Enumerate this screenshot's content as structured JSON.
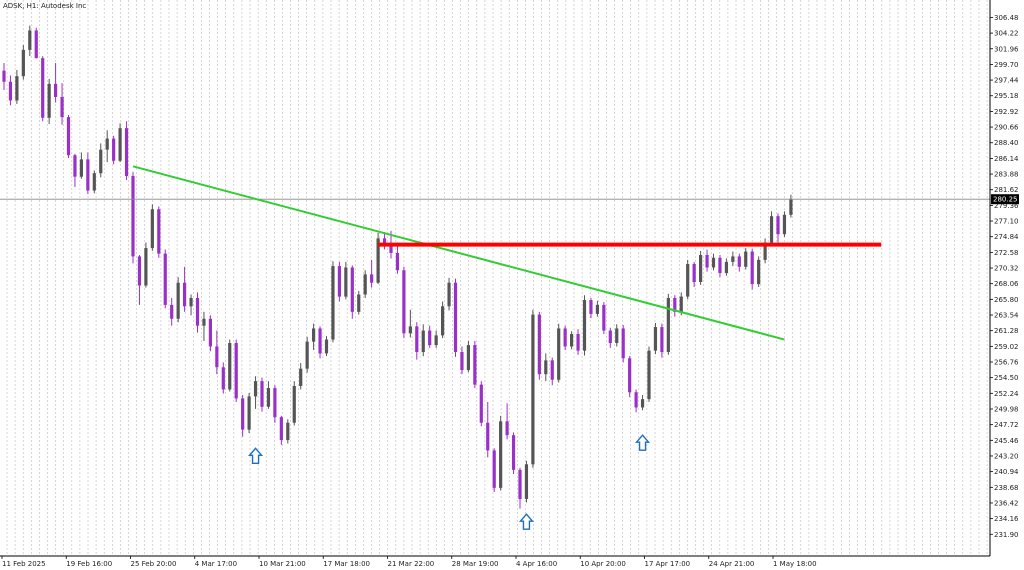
{
  "chart_data": {
    "type": "candlestick",
    "title": "ADSK, H1:  Autodesk Inc",
    "ylim": [
      230.86,
      307.48
    ],
    "y_ticks": [
      "306.48",
      "304.22",
      "301.96",
      "299.70",
      "297.44",
      "295.18",
      "292.92",
      "290.66",
      "288.40",
      "286.14",
      "283.88",
      "281.62",
      "279.36",
      "277.10",
      "274.84",
      "272.58",
      "270.32",
      "268.06",
      "265.80",
      "263.54",
      "261.28",
      "259.02",
      "256.76",
      "254.50",
      "252.24",
      "249.98",
      "247.72",
      "245.46",
      "243.20",
      "240.94",
      "238.68",
      "236.42",
      "234.16",
      "231.90"
    ],
    "x_ticks": [
      "11 Feb 2025",
      "19 Feb 16:00",
      "25 Feb 20:00",
      "4 Mar 17:00",
      "10 Mar 21:00",
      "17 Mar 18:00",
      "21 Mar 22:00",
      "28 Mar 19:00",
      "4 Apr 16:00",
      "10 Apr 20:00",
      "17 Apr 17:00",
      "24 Apr 21:00",
      "1 May 18:00"
    ],
    "current_price": "280.25",
    "vertical_grid": true,
    "colors": {
      "bull": "#555555",
      "bear": "#9b30c8",
      "trendline": "#33cc33",
      "resistance": "#ff0000",
      "marker": "#1e6fbf",
      "grid": "#bbbbbb"
    },
    "trendline": {
      "from": {
        "bar": 20,
        "price": 285.0
      },
      "to": {
        "bar": 121,
        "price": 260.0
      }
    },
    "resistance": {
      "from": {
        "bar": 58,
        "price": 273.7
      },
      "to": {
        "bar": 136,
        "price": 273.7
      }
    },
    "markers": [
      {
        "type": "up-arrow",
        "bar": 39,
        "price": 244.3
      },
      {
        "type": "up-arrow",
        "bar": 81,
        "price": 234.8
      },
      {
        "type": "up-arrow",
        "bar": 99,
        "price": 246.2
      }
    ],
    "ohlc": [
      [
        298.8,
        299.9,
        296.0,
        297.2
      ],
      [
        297.2,
        298.1,
        293.8,
        294.5
      ],
      [
        294.5,
        298.9,
        294.0,
        298.0
      ],
      [
        298.0,
        302.5,
        297.5,
        301.8
      ],
      [
        301.8,
        305.3,
        300.9,
        304.6
      ],
      [
        304.6,
        305.0,
        300.6,
        300.6
      ],
      [
        300.6,
        300.9,
        291.5,
        292.0
      ],
      [
        292.0,
        297.6,
        291.1,
        296.9
      ],
      [
        296.9,
        299.9,
        294.2,
        295.0
      ],
      [
        295.0,
        297.0,
        291.0,
        292.1
      ],
      [
        292.1,
        292.4,
        286.2,
        286.6
      ],
      [
        286.6,
        286.8,
        282.0,
        283.5
      ],
      [
        283.5,
        287.0,
        283.2,
        286.0
      ],
      [
        286.0,
        287.0,
        281.0,
        281.5
      ],
      [
        281.5,
        284.4,
        281.1,
        284.0
      ],
      [
        284.0,
        288.3,
        283.4,
        287.4
      ],
      [
        287.4,
        290.2,
        285.6,
        289.0
      ],
      [
        289.0,
        289.4,
        285.3,
        285.8
      ],
      [
        285.8,
        291.2,
        285.6,
        290.5
      ],
      [
        290.5,
        291.5,
        283.0,
        283.6
      ],
      [
        283.6,
        284.2,
        271.0,
        272.0
      ],
      [
        272.0,
        272.2,
        265.0,
        267.8
      ],
      [
        267.8,
        274.0,
        267.5,
        273.2
      ],
      [
        273.2,
        279.5,
        272.8,
        278.8
      ],
      [
        278.8,
        279.2,
        271.8,
        272.4
      ],
      [
        272.4,
        273.0,
        264.5,
        265.0
      ],
      [
        265.0,
        266.0,
        262.0,
        263.0
      ],
      [
        263.0,
        269.0,
        262.5,
        268.2
      ],
      [
        268.2,
        270.5,
        264.0,
        264.8
      ],
      [
        264.8,
        266.5,
        263.5,
        266.0
      ],
      [
        266.0,
        266.8,
        261.0,
        262.0
      ],
      [
        262.0,
        264.0,
        259.8,
        263.0
      ],
      [
        263.0,
        263.5,
        258.3,
        259.0
      ],
      [
        259.0,
        261.3,
        255.0,
        256.0
      ],
      [
        256.0,
        256.7,
        252.2,
        252.8
      ],
      [
        252.8,
        260.0,
        252.5,
        259.5
      ],
      [
        259.5,
        260.0,
        251.0,
        251.5
      ],
      [
        251.5,
        252.0,
        246.0,
        247.0
      ],
      [
        247.0,
        252.3,
        246.5,
        251.8
      ],
      [
        251.8,
        254.7,
        250.0,
        254.0
      ],
      [
        254.0,
        254.5,
        249.6,
        250.3
      ],
      [
        250.3,
        254.0,
        250.0,
        253.0
      ],
      [
        253.0,
        253.4,
        248.0,
        248.8
      ],
      [
        248.8,
        249.0,
        244.8,
        245.5
      ],
      [
        245.5,
        248.5,
        245.0,
        248.0
      ],
      [
        248.0,
        254.0,
        247.6,
        253.3
      ],
      [
        253.3,
        256.6,
        252.8,
        255.8
      ],
      [
        255.8,
        260.4,
        255.2,
        259.7
      ],
      [
        259.7,
        262.3,
        258.5,
        261.6
      ],
      [
        261.6,
        261.9,
        257.3,
        258.0
      ],
      [
        258.0,
        260.5,
        257.6,
        260.0
      ],
      [
        260.0,
        271.3,
        259.6,
        270.6
      ],
      [
        270.6,
        271.2,
        265.5,
        266.2
      ],
      [
        266.2,
        271.2,
        265.8,
        270.4
      ],
      [
        270.4,
        270.7,
        263.0,
        264.0
      ],
      [
        264.0,
        267.0,
        263.6,
        266.5
      ],
      [
        266.5,
        270.0,
        266.0,
        269.4
      ],
      [
        269.4,
        271.5,
        267.5,
        268.2
      ],
      [
        268.2,
        275.4,
        268.0,
        274.6
      ],
      [
        274.6,
        275.5,
        273.0,
        273.8
      ],
      [
        273.8,
        275.7,
        271.7,
        272.5
      ],
      [
        272.5,
        274.0,
        269.5,
        270.0
      ],
      [
        270.0,
        270.5,
        260.2,
        260.9
      ],
      [
        260.9,
        264.3,
        260.3,
        261.9
      ],
      [
        261.9,
        262.5,
        257.1,
        258.2
      ],
      [
        258.2,
        262.2,
        257.6,
        261.3
      ],
      [
        261.3,
        262.0,
        258.8,
        259.2
      ],
      [
        259.2,
        261.3,
        258.8,
        260.6
      ],
      [
        260.6,
        265.5,
        260.2,
        264.8
      ],
      [
        264.8,
        268.9,
        264.2,
        268.2
      ],
      [
        268.2,
        268.8,
        257.5,
        258.2
      ],
      [
        258.2,
        259.0,
        255.0,
        255.6
      ],
      [
        255.6,
        259.8,
        255.3,
        259.2
      ],
      [
        259.2,
        259.8,
        253.0,
        253.5
      ],
      [
        253.5,
        254.0,
        247.5,
        248.0
      ],
      [
        248.0,
        251.0,
        243.0,
        244.0
      ],
      [
        244.0,
        244.3,
        238.0,
        238.6
      ],
      [
        238.6,
        249.0,
        238.2,
        248.2
      ],
      [
        248.2,
        250.8,
        245.6,
        246.2
      ],
      [
        246.2,
        246.6,
        240.6,
        241.2
      ],
      [
        241.2,
        241.5,
        235.6,
        237.0
      ],
      [
        237.0,
        242.5,
        236.5,
        242.0
      ],
      [
        242.0,
        264.3,
        241.5,
        263.6
      ],
      [
        263.6,
        264.0,
        254.2,
        255.0
      ],
      [
        255.0,
        258.0,
        254.0,
        257.0
      ],
      [
        257.0,
        257.4,
        253.4,
        254.2
      ],
      [
        254.2,
        262.3,
        253.8,
        261.6
      ],
      [
        261.6,
        262.0,
        258.5,
        259.0
      ],
      [
        259.0,
        261.2,
        258.6,
        260.8
      ],
      [
        260.8,
        261.5,
        257.8,
        258.4
      ],
      [
        258.4,
        266.4,
        257.7,
        265.7
      ],
      [
        265.7,
        266.0,
        263.1,
        263.7
      ],
      [
        263.7,
        265.6,
        263.3,
        265.0
      ],
      [
        265.0,
        265.4,
        260.8,
        261.3
      ],
      [
        261.3,
        261.7,
        258.8,
        259.5
      ],
      [
        259.5,
        262.2,
        259.0,
        261.6
      ],
      [
        261.6,
        262.1,
        256.7,
        257.3
      ],
      [
        257.3,
        257.6,
        251.7,
        252.4
      ],
      [
        252.4,
        252.8,
        249.5,
        250.2
      ],
      [
        250.2,
        252.0,
        249.8,
        251.4
      ],
      [
        251.4,
        259.0,
        251.0,
        258.4
      ],
      [
        258.4,
        262.4,
        257.9,
        261.8
      ],
      [
        261.8,
        262.3,
        257.4,
        258.2
      ],
      [
        258.2,
        266.6,
        257.8,
        266.0
      ],
      [
        266.0,
        266.4,
        263.3,
        264.0
      ],
      [
        264.0,
        266.8,
        263.5,
        266.2
      ],
      [
        266.2,
        271.5,
        265.8,
        270.9
      ],
      [
        270.9,
        271.2,
        267.6,
        268.3
      ],
      [
        268.3,
        272.8,
        267.9,
        272.2
      ],
      [
        272.2,
        273.0,
        269.8,
        270.4
      ],
      [
        270.4,
        272.4,
        270.0,
        271.8
      ],
      [
        271.8,
        272.2,
        269.0,
        269.6
      ],
      [
        269.6,
        271.7,
        269.2,
        271.2
      ],
      [
        271.2,
        272.7,
        270.6,
        272.0
      ],
      [
        272.0,
        272.4,
        269.8,
        270.5
      ],
      [
        270.5,
        273.2,
        270.1,
        272.7
      ],
      [
        272.7,
        273.1,
        267.2,
        268.0
      ],
      [
        268.0,
        272.0,
        267.6,
        271.5
      ],
      [
        271.5,
        274.6,
        271.0,
        274.0
      ],
      [
        274.0,
        278.5,
        273.6,
        277.8
      ],
      [
        277.8,
        278.2,
        274.0,
        275.2
      ],
      [
        275.2,
        278.5,
        274.8,
        278.0
      ],
      [
        278.0,
        280.9,
        277.6,
        280.25
      ]
    ]
  }
}
